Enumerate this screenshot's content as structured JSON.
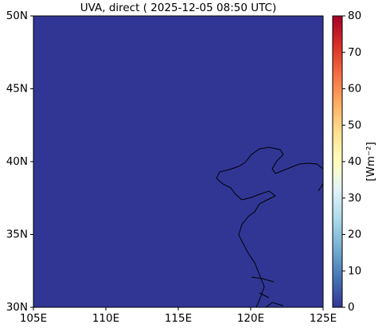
{
  "chart_data": {
    "type": "map",
    "title": "UVA, direct ( 2025-12-05 08:50 UTC)",
    "xlim": [
      105,
      125
    ],
    "xticks": [
      {
        "value": 105,
        "label": "105E"
      },
      {
        "value": 110,
        "label": "110E"
      },
      {
        "value": 115,
        "label": "115E"
      },
      {
        "value": 120,
        "label": "120E"
      },
      {
        "value": 125,
        "label": "125E"
      }
    ],
    "ylim": [
      30,
      50
    ],
    "yticks": [
      {
        "value": 30,
        "label": "30N"
      },
      {
        "value": 35,
        "label": "35N"
      },
      {
        "value": 40,
        "label": "40N"
      },
      {
        "value": 45,
        "label": "45N"
      },
      {
        "value": 50,
        "label": "50N"
      }
    ],
    "field_value": 0,
    "colorbar": {
      "label": "[Wm⁻²]",
      "lim": [
        0,
        80
      ],
      "ticks": [
        0,
        10,
        20,
        30,
        40,
        50,
        60,
        70,
        80
      ],
      "colors": [
        "#313695",
        "#4575b4",
        "#74add1",
        "#abd9e9",
        "#e0f3f8",
        "#ffffbf",
        "#fee090",
        "#fdae61",
        "#f46d43",
        "#d73027",
        "#a50026"
      ]
    }
  }
}
